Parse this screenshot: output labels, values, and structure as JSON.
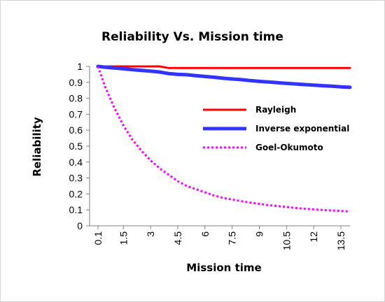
{
  "chart_data": {
    "type": "line",
    "title": "Reliability  Vs. Mission time",
    "xlabel": "Mission time",
    "ylabel": "Reliability",
    "x_tick_labels": [
      "0.1",
      "1.5",
      "3",
      "4.5",
      "6",
      "7.5",
      "9",
      "10.5",
      "12",
      "13.5"
    ],
    "x": [
      0.1,
      0.5,
      1,
      1.5,
      2,
      2.5,
      3,
      3.5,
      4,
      4.5,
      5,
      5.5,
      6,
      6.5,
      7,
      7.5,
      8,
      8.5,
      9,
      9.5,
      10,
      10.5,
      11,
      11.5,
      12,
      12.5,
      13,
      13.5,
      14
    ],
    "ylim": [
      0,
      1
    ],
    "y_ticks": [
      "0",
      "0.1",
      "0.2",
      "0.3",
      "0.4",
      "0.5",
      "0.6",
      "0.7",
      "0.8",
      "0.9",
      "1"
    ],
    "grid": false,
    "legend_position": "right",
    "series": [
      {
        "name": "Rayleigh",
        "color": "#ff0000",
        "style": "solid",
        "values": [
          1,
          1,
          1,
          1,
          1,
          1,
          1,
          1,
          0.99,
          0.99,
          0.99,
          0.99,
          0.99,
          0.99,
          0.99,
          0.99,
          0.99,
          0.99,
          0.99,
          0.99,
          0.99,
          0.99,
          0.99,
          0.99,
          0.99,
          0.99,
          0.99,
          0.99,
          0.99
        ]
      },
      {
        "name": "Inverse exponential",
        "color": "#3333ff",
        "style": "solid",
        "values": [
          1,
          0.995,
          0.99,
          0.985,
          0.98,
          0.975,
          0.97,
          0.965,
          0.955,
          0.95,
          0.948,
          0.942,
          0.937,
          0.932,
          0.926,
          0.921,
          0.917,
          0.911,
          0.906,
          0.902,
          0.898,
          0.894,
          0.89,
          0.886,
          0.883,
          0.879,
          0.876,
          0.872,
          0.869
        ]
      },
      {
        "name": "Goel-Okumoto",
        "color": "#ff00ff",
        "style": "dotted",
        "values": [
          1,
          0.87,
          0.74,
          0.63,
          0.54,
          0.47,
          0.41,
          0.36,
          0.32,
          0.28,
          0.25,
          0.23,
          0.21,
          0.19,
          0.175,
          0.165,
          0.155,
          0.145,
          0.138,
          0.13,
          0.124,
          0.118,
          0.112,
          0.107,
          0.103,
          0.099,
          0.096,
          0.093,
          0.09
        ]
      }
    ]
  }
}
